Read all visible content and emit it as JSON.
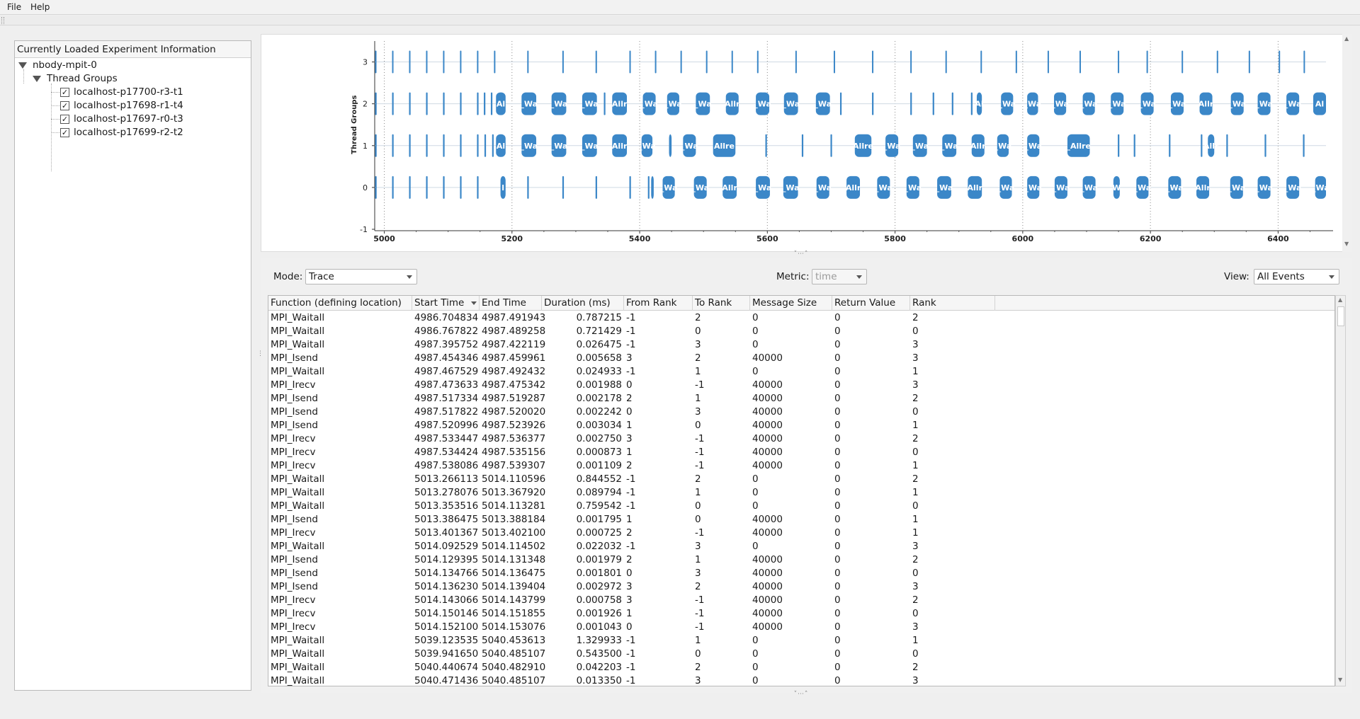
{
  "menu": {
    "file": "File",
    "help": "Help"
  },
  "experiment_panel": {
    "title": "Currently Loaded Experiment Information",
    "experiment": "nbody-mpit-0",
    "group_label": "Thread Groups",
    "threads": [
      {
        "label": "localhost-p17700-r3-t1",
        "checked": true
      },
      {
        "label": "localhost-p17698-r1-t4",
        "checked": true
      },
      {
        "label": "localhost-p17697-r0-t3",
        "checked": true
      },
      {
        "label": "localhost-p17699-r2-t2",
        "checked": true
      }
    ],
    "check_mark": "✓"
  },
  "chart_data": {
    "type": "timeline",
    "ylabel": "Thread Groups",
    "xlim": [
      4985,
      6475
    ],
    "ylim": [
      -1,
      3.5
    ],
    "x_ticks": [
      5000,
      5200,
      5400,
      5600,
      5800,
      6000,
      6200,
      6400
    ],
    "y_ticks": [
      -1,
      0,
      1,
      2,
      3
    ],
    "color": "#3b87c8",
    "tick_events_per_row": {
      "3": [
        4986.7,
        5013.3,
        5039.9,
        5066.5,
        5093.1,
        5119.7,
        5146.3,
        5172.9,
        5225,
        5280,
        5332,
        5385,
        5425,
        5465,
        5505,
        5545,
        5585,
        5645,
        5705,
        5765,
        5825,
        5880,
        5935,
        5990,
        6040,
        6090,
        6150,
        6195,
        6250,
        6305,
        6355,
        6402,
        6441
      ]
    },
    "blocks_per_row": {
      "2": [
        [
          5175,
          5190,
          "Al"
        ],
        [
          5215,
          5238,
          "_Wa"
        ],
        [
          5262,
          5285,
          "_Wa"
        ],
        [
          5310,
          5333,
          "_Wa"
        ],
        [
          5357,
          5380,
          "Allr"
        ],
        [
          5405,
          5425,
          "_Wa"
        ],
        [
          5443,
          5462,
          "_Wa"
        ],
        [
          5488,
          5510,
          "_Wa"
        ],
        [
          5535,
          5555,
          "Allr"
        ],
        [
          5582,
          5603,
          "_Wa"
        ],
        [
          5626,
          5648,
          "_Wa"
        ],
        [
          5676,
          5698,
          "_Wa"
        ],
        [
          5928,
          5936,
          "Al"
        ],
        [
          5966,
          5985,
          "_Wa"
        ],
        [
          6007,
          6024,
          "_Wa"
        ],
        [
          6049,
          6068,
          "_Wa"
        ],
        [
          6094,
          6113,
          "_Wa"
        ],
        [
          6138,
          6158,
          "_Wa"
        ],
        [
          6185,
          6205,
          "_Wa"
        ],
        [
          6232,
          6252,
          "_Wa"
        ],
        [
          6277,
          6297,
          "Allr"
        ],
        [
          6326,
          6346,
          "_Wa"
        ],
        [
          6368,
          6388,
          "_Wa"
        ],
        [
          6413,
          6433,
          "_Wa"
        ],
        [
          6455,
          6475,
          "Al"
        ]
      ],
      "1": [
        [
          5175,
          5190,
          "Al"
        ],
        [
          5215,
          5238,
          "_Wa"
        ],
        [
          5262,
          5285,
          "_Wa"
        ],
        [
          5310,
          5333,
          "_Wa"
        ],
        [
          5357,
          5380,
          "Allr"
        ],
        [
          5403,
          5420,
          "_Wa"
        ],
        [
          5446,
          5450,
          ""
        ],
        [
          5468,
          5488,
          "_Wa"
        ],
        [
          5515,
          5550,
          "Allre"
        ],
        [
          5737,
          5763,
          "Allre"
        ],
        [
          5785,
          5805,
          "_Wa"
        ],
        [
          5828,
          5850,
          "_Wa"
        ],
        [
          5874,
          5896,
          "_Wa"
        ],
        [
          5920,
          5940,
          "Allr"
        ],
        [
          5960,
          5978,
          "_Wa"
        ],
        [
          6007,
          6026,
          "_Wa"
        ],
        [
          6070,
          6105,
          "_Allre"
        ],
        [
          6290,
          6300,
          "Allr"
        ]
      ],
      "0": [
        [
          5182,
          5190,
          "l"
        ],
        [
          5418,
          5422,
          ""
        ],
        [
          5436,
          5455,
          "_Wa"
        ],
        [
          5485,
          5505,
          "_Wa"
        ],
        [
          5530,
          5552,
          "Allr"
        ],
        [
          5582,
          5604,
          "_Wa"
        ],
        [
          5625,
          5648,
          "_Wa"
        ],
        [
          5677,
          5697,
          "_Wa"
        ],
        [
          5724,
          5745,
          "Allr"
        ],
        [
          5772,
          5792,
          "_Wa"
        ],
        [
          5818,
          5838,
          "_Wa"
        ],
        [
          5866,
          5888,
          "_Wa"
        ],
        [
          5914,
          5936,
          "Allr"
        ],
        [
          5964,
          5983,
          "_Wa"
        ],
        [
          6007,
          6026,
          "_Wa"
        ],
        [
          6050,
          6070,
          "_Wa"
        ],
        [
          6094,
          6114,
          "_Wa"
        ],
        [
          6142,
          6152,
          "W"
        ],
        [
          6178,
          6197,
          "_Wa"
        ],
        [
          6228,
          6248,
          "_Wa"
        ],
        [
          6272,
          6292,
          "Allr"
        ],
        [
          6325,
          6345,
          "_Wa"
        ],
        [
          6368,
          6388,
          "_Wa"
        ],
        [
          6413,
          6433,
          "_Wa"
        ],
        [
          6458,
          6475,
          "_Wa"
        ]
      ]
    },
    "thin_events_per_row": {
      "2": [
        4986.7,
        5013.3,
        5039.9,
        5066.5,
        5093.1,
        5119.7,
        5146.3,
        5157,
        5168,
        5345,
        5410,
        5590,
        5715,
        5765,
        5825,
        5860,
        5890,
        5920
      ],
      "1": [
        4986.7,
        5013.3,
        5039.9,
        5066.5,
        5093.1,
        5119.7,
        5146.3,
        5158,
        5170,
        5598,
        5655,
        5700,
        6150,
        6175,
        6230,
        6280,
        6320,
        6380,
        6440
      ],
      "0": [
        4986.7,
        5013.3,
        5039.9,
        5066.5,
        5093.1,
        5119.7,
        5146.3,
        5225,
        5280,
        5332,
        5385,
        5414
      ]
    }
  },
  "controls": {
    "mode_label": "Mode:",
    "mode_value": "Trace",
    "metric_label": "Metric:",
    "metric_value": "time",
    "view_label": "View:",
    "view_value": "All Events"
  },
  "table": {
    "columns": [
      "Function (defining location)",
      "Start Time",
      "End Time",
      "Duration (ms)",
      "From Rank",
      "To Rank",
      "Message Size",
      "Return Value",
      "Rank"
    ],
    "rows": [
      [
        "MPI_Waitall",
        "4986.704834",
        "4987.491943",
        "0.787215",
        "-1",
        "2",
        "0",
        "0",
        "2"
      ],
      [
        "MPI_Waitall",
        "4986.767822",
        "4987.489258",
        "0.721429",
        "-1",
        "0",
        "0",
        "0",
        "0"
      ],
      [
        "MPI_Waitall",
        "4987.395752",
        "4987.422119",
        "0.026475",
        "-1",
        "3",
        "0",
        "0",
        "3"
      ],
      [
        "MPI_Isend",
        "4987.454346",
        "4987.459961",
        "0.005658",
        "3",
        "2",
        "40000",
        "0",
        "3"
      ],
      [
        "MPI_Waitall",
        "4987.467529",
        "4987.492432",
        "0.024933",
        "-1",
        "1",
        "0",
        "0",
        "1"
      ],
      [
        "MPI_Irecv",
        "4987.473633",
        "4987.475342",
        "0.001988",
        "0",
        "-1",
        "40000",
        "0",
        "3"
      ],
      [
        "MPI_Isend",
        "4987.517334",
        "4987.519287",
        "0.002178",
        "2",
        "1",
        "40000",
        "0",
        "2"
      ],
      [
        "MPI_Isend",
        "4987.517822",
        "4987.520020",
        "0.002242",
        "0",
        "3",
        "40000",
        "0",
        "0"
      ],
      [
        "MPI_Isend",
        "4987.520996",
        "4987.523926",
        "0.003034",
        "1",
        "0",
        "40000",
        "0",
        "1"
      ],
      [
        "MPI_Irecv",
        "4987.533447",
        "4987.536377",
        "0.002750",
        "3",
        "-1",
        "40000",
        "0",
        "2"
      ],
      [
        "MPI_Irecv",
        "4987.534424",
        "4987.535156",
        "0.000873",
        "1",
        "-1",
        "40000",
        "0",
        "0"
      ],
      [
        "MPI_Irecv",
        "4987.538086",
        "4987.539307",
        "0.001109",
        "2",
        "-1",
        "40000",
        "0",
        "1"
      ],
      [
        "MPI_Waitall",
        "5013.266113",
        "5014.110596",
        "0.844552",
        "-1",
        "2",
        "0",
        "0",
        "2"
      ],
      [
        "MPI_Waitall",
        "5013.278076",
        "5013.367920",
        "0.089794",
        "-1",
        "1",
        "0",
        "0",
        "1"
      ],
      [
        "MPI_Waitall",
        "5013.353516",
        "5014.113281",
        "0.759542",
        "-1",
        "0",
        "0",
        "0",
        "0"
      ],
      [
        "MPI_Isend",
        "5013.386475",
        "5013.388184",
        "0.001795",
        "1",
        "0",
        "40000",
        "0",
        "1"
      ],
      [
        "MPI_Irecv",
        "5013.401367",
        "5013.402100",
        "0.000725",
        "2",
        "-1",
        "40000",
        "0",
        "1"
      ],
      [
        "MPI_Waitall",
        "5014.092529",
        "5014.114502",
        "0.022032",
        "-1",
        "3",
        "0",
        "0",
        "3"
      ],
      [
        "MPI_Isend",
        "5014.129395",
        "5014.131348",
        "0.001979",
        "2",
        "1",
        "40000",
        "0",
        "2"
      ],
      [
        "MPI_Isend",
        "5014.134766",
        "5014.136475",
        "0.001801",
        "0",
        "3",
        "40000",
        "0",
        "0"
      ],
      [
        "MPI_Isend",
        "5014.136230",
        "5014.139404",
        "0.002972",
        "3",
        "2",
        "40000",
        "0",
        "3"
      ],
      [
        "MPI_Irecv",
        "5014.143066",
        "5014.143799",
        "0.000758",
        "3",
        "-1",
        "40000",
        "0",
        "2"
      ],
      [
        "MPI_Irecv",
        "5014.150146",
        "5014.151855",
        "0.001926",
        "1",
        "-1",
        "40000",
        "0",
        "0"
      ],
      [
        "MPI_Irecv",
        "5014.152100",
        "5014.153076",
        "0.001043",
        "0",
        "-1",
        "40000",
        "0",
        "3"
      ],
      [
        "MPI_Waitall",
        "5039.123535",
        "5040.453613",
        "1.329933",
        "-1",
        "1",
        "0",
        "0",
        "1"
      ],
      [
        "MPI_Waitall",
        "5039.941650",
        "5040.485107",
        "0.543500",
        "-1",
        "0",
        "0",
        "0",
        "0"
      ],
      [
        "MPI_Waitall",
        "5040.440674",
        "5040.482910",
        "0.042203",
        "-1",
        "2",
        "0",
        "0",
        "2"
      ],
      [
        "MPI_Waitall",
        "5040.471436",
        "5040.485107",
        "0.013350",
        "-1",
        "3",
        "0",
        "0",
        "3"
      ]
    ]
  }
}
